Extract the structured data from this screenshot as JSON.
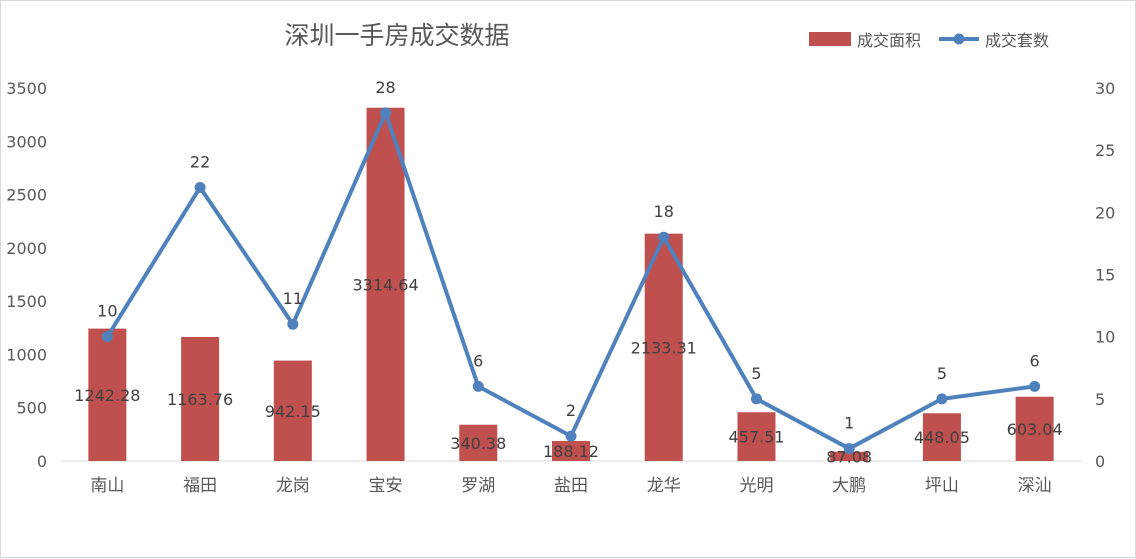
{
  "chart_data": {
    "type": "bar+line",
    "title": "深圳一手房成交数据",
    "categories": [
      "南山",
      "福田",
      "龙岗",
      "宝安",
      "罗湖",
      "盐田",
      "龙华",
      "光明",
      "大鹏",
      "坪山",
      "深汕"
    ],
    "series": [
      {
        "name": "成交面积",
        "type": "bar",
        "axis": "left",
        "color": "#c0504d",
        "values": [
          1242.28,
          1163.76,
          942.15,
          3314.64,
          340.38,
          188.12,
          2133.31,
          457.51,
          87.08,
          448.05,
          603.04
        ],
        "value_labels": [
          "1242.28",
          "1163.76",
          "942.15",
          "3314.64",
          "340.38",
          "188.12",
          "2133.31",
          "457.51",
          "87.08",
          "448.05",
          "603.04"
        ]
      },
      {
        "name": "成交套数",
        "type": "line",
        "axis": "right",
        "color": "#4f81bd",
        "values": [
          10,
          22,
          11,
          28,
          6,
          2,
          18,
          5,
          1,
          5,
          6
        ],
        "value_labels": [
          "10",
          "22",
          "11",
          "28",
          "6",
          "2",
          "18",
          "5",
          "1",
          "5",
          "6"
        ]
      }
    ],
    "ylim_left": [
      0,
      3500
    ],
    "ylim_right": [
      0,
      30
    ],
    "yticks_left": [
      0,
      500,
      1000,
      1500,
      2000,
      2500,
      3000,
      3500
    ],
    "yticks_left_labels": [
      "0",
      "500",
      "1000",
      "1500",
      "2000",
      "2500",
      "3000",
      "3500"
    ],
    "yticks_right": [
      0,
      5,
      10,
      15,
      20,
      25,
      30
    ],
    "yticks_right_labels": [
      "0",
      "5",
      "10",
      "15",
      "20",
      "25",
      "30"
    ],
    "grid": false,
    "legend_position": "top-right"
  }
}
